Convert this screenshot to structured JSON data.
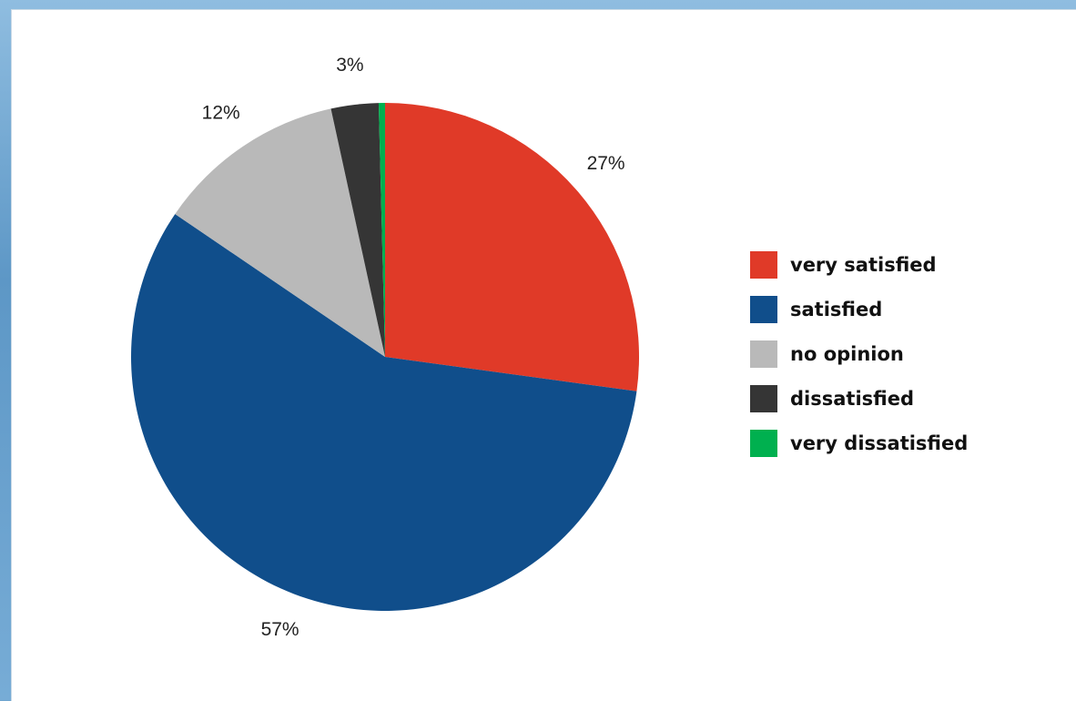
{
  "chart_data": {
    "type": "pie",
    "title": "",
    "legend_position": "right",
    "slices": [
      {
        "label": "very satisfied",
        "value": 27,
        "display": "27%",
        "color": "#e03a28"
      },
      {
        "label": "satisfied",
        "value": 57,
        "display": "57%",
        "color": "#104e8b"
      },
      {
        "label": "no opinion",
        "value": 12,
        "display": "12%",
        "color": "#b9b9b9"
      },
      {
        "label": "dissatisfied",
        "value": 3,
        "display": "3%",
        "color": "#353535"
      },
      {
        "label": "very dissatisfied",
        "value": 0.4,
        "display": "",
        "color": "#00b04f"
      }
    ]
  }
}
